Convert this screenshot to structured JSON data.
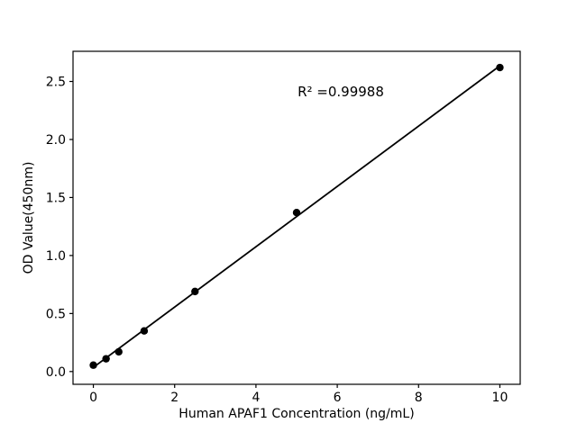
{
  "chart_data": {
    "type": "scatter",
    "title": "",
    "xlabel": "Human APAF1 Concentration (ng/mL)",
    "ylabel": "OD Value(450nm)",
    "annotation": "R² =0.99988",
    "r_squared": 0.99988,
    "x": [
      0,
      0.313,
      0.625,
      1.25,
      2.5,
      5,
      10
    ],
    "y": [
      0.055,
      0.11,
      0.17,
      0.35,
      0.69,
      1.37,
      2.62
    ],
    "fit_line": {
      "slope": 0.2599,
      "intercept": 0.036,
      "x_start": 0,
      "x_end": 10
    },
    "xlim": [
      -0.5,
      10.5
    ],
    "ylim": [
      -0.11,
      2.76
    ],
    "x_ticks": [
      0,
      2,
      4,
      6,
      8,
      10
    ],
    "x_tick_labels": [
      "0",
      "2",
      "4",
      "6",
      "8",
      "10"
    ],
    "y_ticks": [
      0.0,
      0.5,
      1.0,
      1.5,
      2.0,
      2.5
    ],
    "y_tick_labels": [
      "0.0",
      "0.5",
      "1.0",
      "1.5",
      "2.0",
      "2.5"
    ],
    "grid": false,
    "legend": null,
    "colors": {
      "marker": "#000000",
      "line": "#000000",
      "axis": "#000000",
      "background": "#ffffff"
    }
  }
}
